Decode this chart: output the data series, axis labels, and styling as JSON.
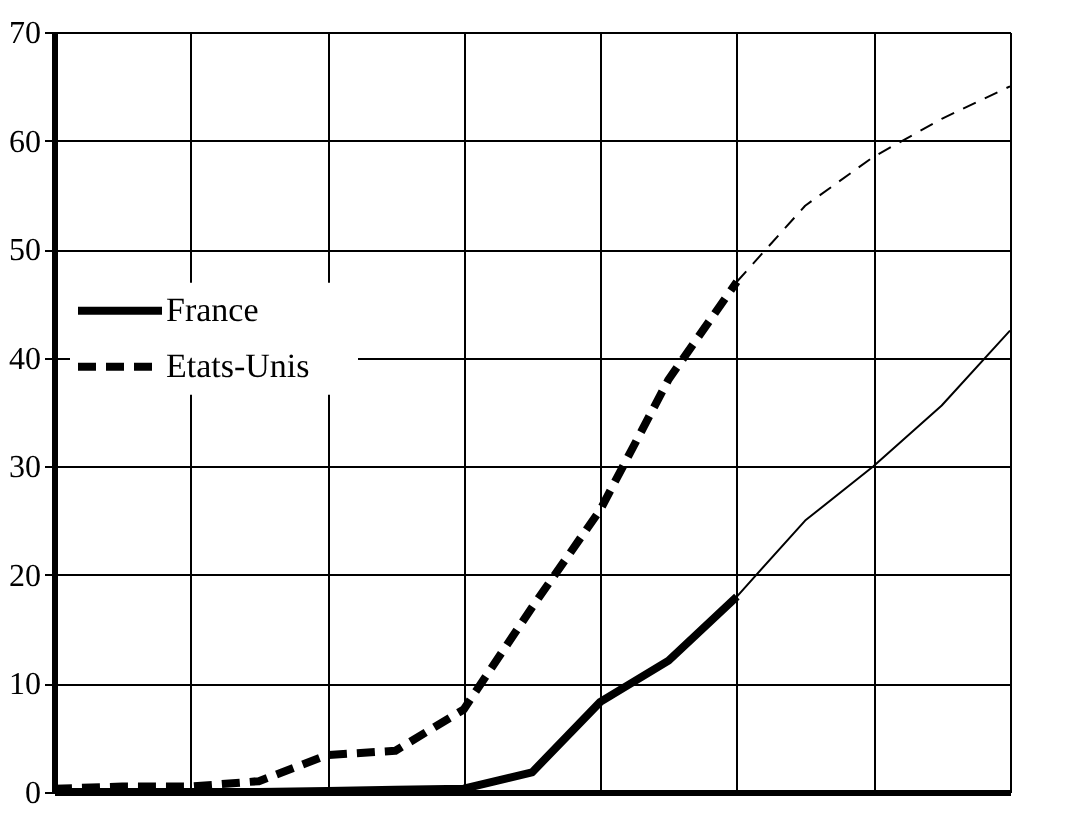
{
  "chart_data": {
    "type": "line",
    "categories": [
      null,
      null,
      null,
      null,
      null,
      null,
      null,
      null,
      null,
      null,
      null,
      null,
      null,
      null,
      null
    ],
    "series": [
      {
        "name": "France",
        "color": "#000000",
        "line_style": "solid",
        "values": [
          0,
          0,
          0,
          0,
          0.1,
          0.2,
          0.3,
          1.8,
          8.3,
          12.1,
          18,
          null,
          null,
          null,
          null
        ]
      },
      {
        "name": "Etats-Unis",
        "color": "#000000",
        "line_style": "dashed",
        "values": [
          0.3,
          0.5,
          0.5,
          1,
          3.4,
          3.8,
          7.6,
          17,
          26,
          38,
          47,
          null,
          null,
          null,
          null
        ]
      },
      {
        "color": "#000000",
        "line_style": "solid",
        "values": [
          null,
          null,
          null,
          null,
          null,
          null,
          null,
          null,
          null,
          null,
          18,
          25,
          30,
          35.6,
          42.5
        ]
      },
      {
        "color": "#000000",
        "line_style": "dashed",
        "values": [
          null,
          null,
          null,
          null,
          null,
          null,
          null,
          null,
          null,
          null,
          47,
          54,
          58.5,
          62,
          65
        ]
      }
    ],
    "ylim": [
      0,
      70
    ],
    "yticks": [
      0,
      10,
      20,
      30,
      40,
      50,
      60,
      70
    ],
    "grid": true,
    "legend": "left",
    "tick_labels": "y"
  }
}
